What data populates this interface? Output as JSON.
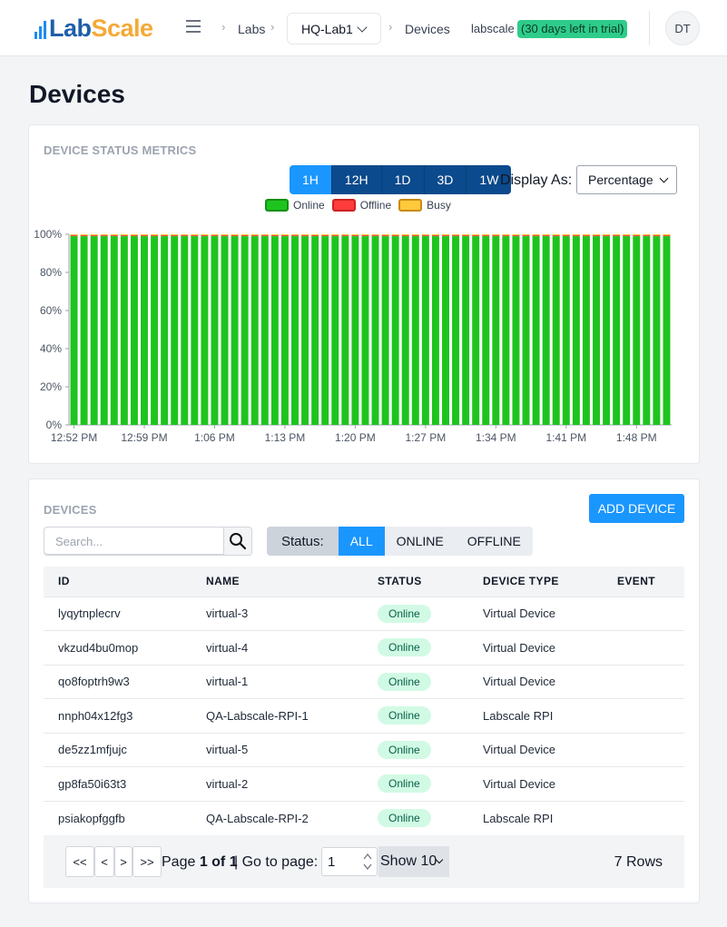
{
  "header": {
    "logo_lab": "Lab",
    "logo_scale": "Scale",
    "breadcrumb": {
      "labs": "Labs",
      "lab": "HQ-Lab1",
      "devices": "Devices"
    },
    "org": "labscale",
    "trial": "(30 days left in trial)",
    "avatar": "DT"
  },
  "page": {
    "title": "Devices"
  },
  "metrics": {
    "title": "DEVICE STATUS METRICS",
    "ranges": [
      "1H",
      "12H",
      "1D",
      "3D",
      "1W"
    ],
    "active_range": "1H",
    "display_label": "Display As:",
    "display_value": "Percentage",
    "legend": [
      {
        "name": "Online",
        "fill": "#1ec41e",
        "border": "#159015"
      },
      {
        "name": "Offline",
        "fill": "#ff3b3b",
        "border": "#cc2222"
      },
      {
        "name": "Busy",
        "fill": "#ffc93c",
        "border": "#c98a10"
      }
    ]
  },
  "chart_data": {
    "type": "bar",
    "stacked": true,
    "bar_count": 60,
    "x_tick_labels": [
      "12:52 PM",
      "12:59 PM",
      "1:06 PM",
      "1:13 PM",
      "1:20 PM",
      "1:27 PM",
      "1:34 PM",
      "1:41 PM",
      "1:48 PM"
    ],
    "y_tick_labels": [
      "0%",
      "20%",
      "40%",
      "60%",
      "80%",
      "100%"
    ],
    "ylim": [
      0,
      100
    ],
    "series": [
      {
        "name": "Online",
        "color": "#1ec41e",
        "value": 99
      },
      {
        "name": "Offline",
        "color": "#ff3b3b",
        "value": 0.5
      },
      {
        "name": "Busy",
        "color": "#ffc93c",
        "value": 0.5
      }
    ],
    "grid": false
  },
  "devices": {
    "title": "DEVICES",
    "add_label": "ADD DEVICE",
    "search_placeholder": "Search...",
    "status_label": "Status:",
    "status_options": [
      "ALL",
      "ONLINE",
      "OFFLINE"
    ],
    "active_status": "ALL",
    "columns": [
      "ID",
      "NAME",
      "STATUS",
      "DEVICE TYPE",
      "EVENT"
    ],
    "rows": [
      {
        "id": "lyqytnplecrv",
        "name": "virtual-3",
        "status": "Online",
        "type": "Virtual Device",
        "event": ""
      },
      {
        "id": "vkzud4bu0mop",
        "name": "virtual-4",
        "status": "Online",
        "type": "Virtual Device",
        "event": ""
      },
      {
        "id": "qo8foptrh9w3",
        "name": "virtual-1",
        "status": "Online",
        "type": "Virtual Device",
        "event": ""
      },
      {
        "id": "nnph04x12fg3",
        "name": "QA-Labscale-RPI-1",
        "status": "Online",
        "type": "Labscale RPI",
        "event": ""
      },
      {
        "id": "de5zz1mfjujc",
        "name": "virtual-5",
        "status": "Online",
        "type": "Virtual Device",
        "event": ""
      },
      {
        "id": "gp8fa50i63t3",
        "name": "virtual-2",
        "status": "Online",
        "type": "Virtual Device",
        "event": ""
      },
      {
        "id": "psiakopfggfb",
        "name": "QA-Labscale-RPI-2",
        "status": "Online",
        "type": "Labscale RPI",
        "event": ""
      }
    ]
  },
  "pagination": {
    "first": "<<",
    "prev": "<",
    "next": ">",
    "last": ">>",
    "page_prefix": "Page ",
    "page_of": "1 of 1",
    "goto_label": "| Go to page:",
    "goto_value": "1",
    "show_label": "Show 10",
    "rows_label": "7 Rows"
  }
}
